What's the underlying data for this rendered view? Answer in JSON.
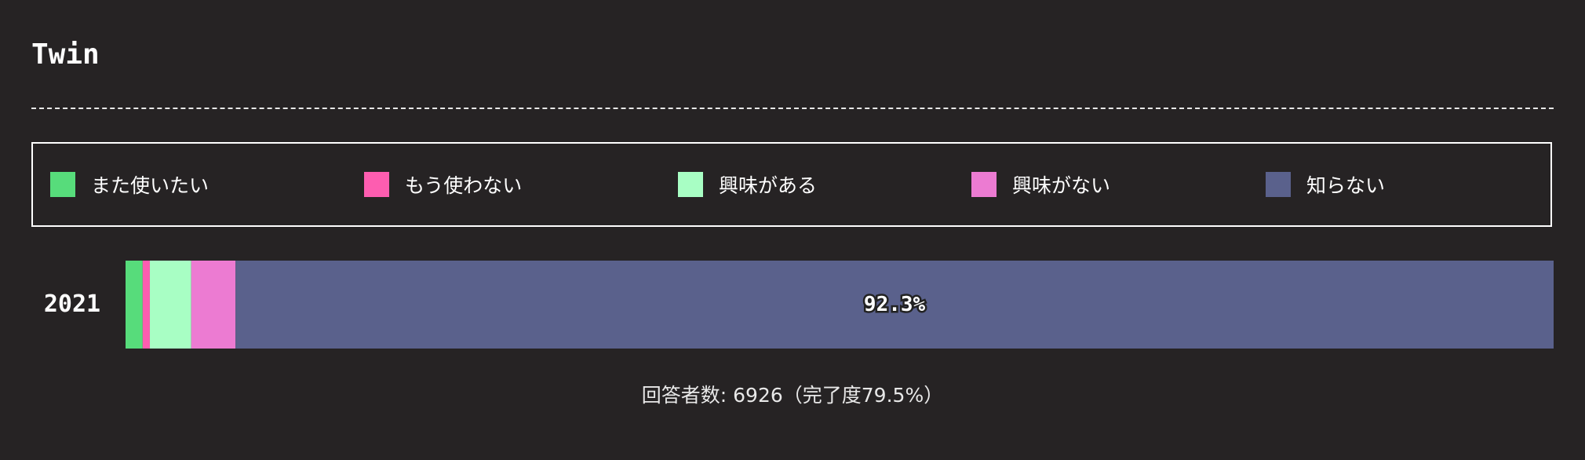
{
  "header": {
    "title": "Twin"
  },
  "legend": {
    "items": [
      {
        "label": "また使いたい",
        "color": "#57dc7b"
      },
      {
        "label": "もう使わない",
        "color": "#fd5db0"
      },
      {
        "label": "興味がある",
        "color": "#a8fec4"
      },
      {
        "label": "興味がない",
        "color": "#ec7bd2"
      },
      {
        "label": "知らない",
        "color": "#5a618c"
      }
    ]
  },
  "chart_data": {
    "type": "bar",
    "orientation": "horizontal",
    "stacked": true,
    "categories": [
      "2021"
    ],
    "series": [
      {
        "name": "また使いたい",
        "color": "#57dc7b",
        "values": [
          1.2
        ]
      },
      {
        "name": "もう使わない",
        "color": "#fd5db0",
        "values": [
          0.5
        ]
      },
      {
        "name": "興味がある",
        "color": "#a8fec4",
        "values": [
          2.9
        ]
      },
      {
        "name": "興味がない",
        "color": "#ec7bd2",
        "values": [
          3.1
        ]
      },
      {
        "name": "知らない",
        "color": "#5a618c",
        "values": [
          92.3
        ],
        "label": "92.3%"
      }
    ],
    "xlim": [
      0,
      100
    ],
    "legend_position": "top",
    "grid": false
  },
  "footer": {
    "text": "回答者数: 6926（完了度79.5%）"
  }
}
